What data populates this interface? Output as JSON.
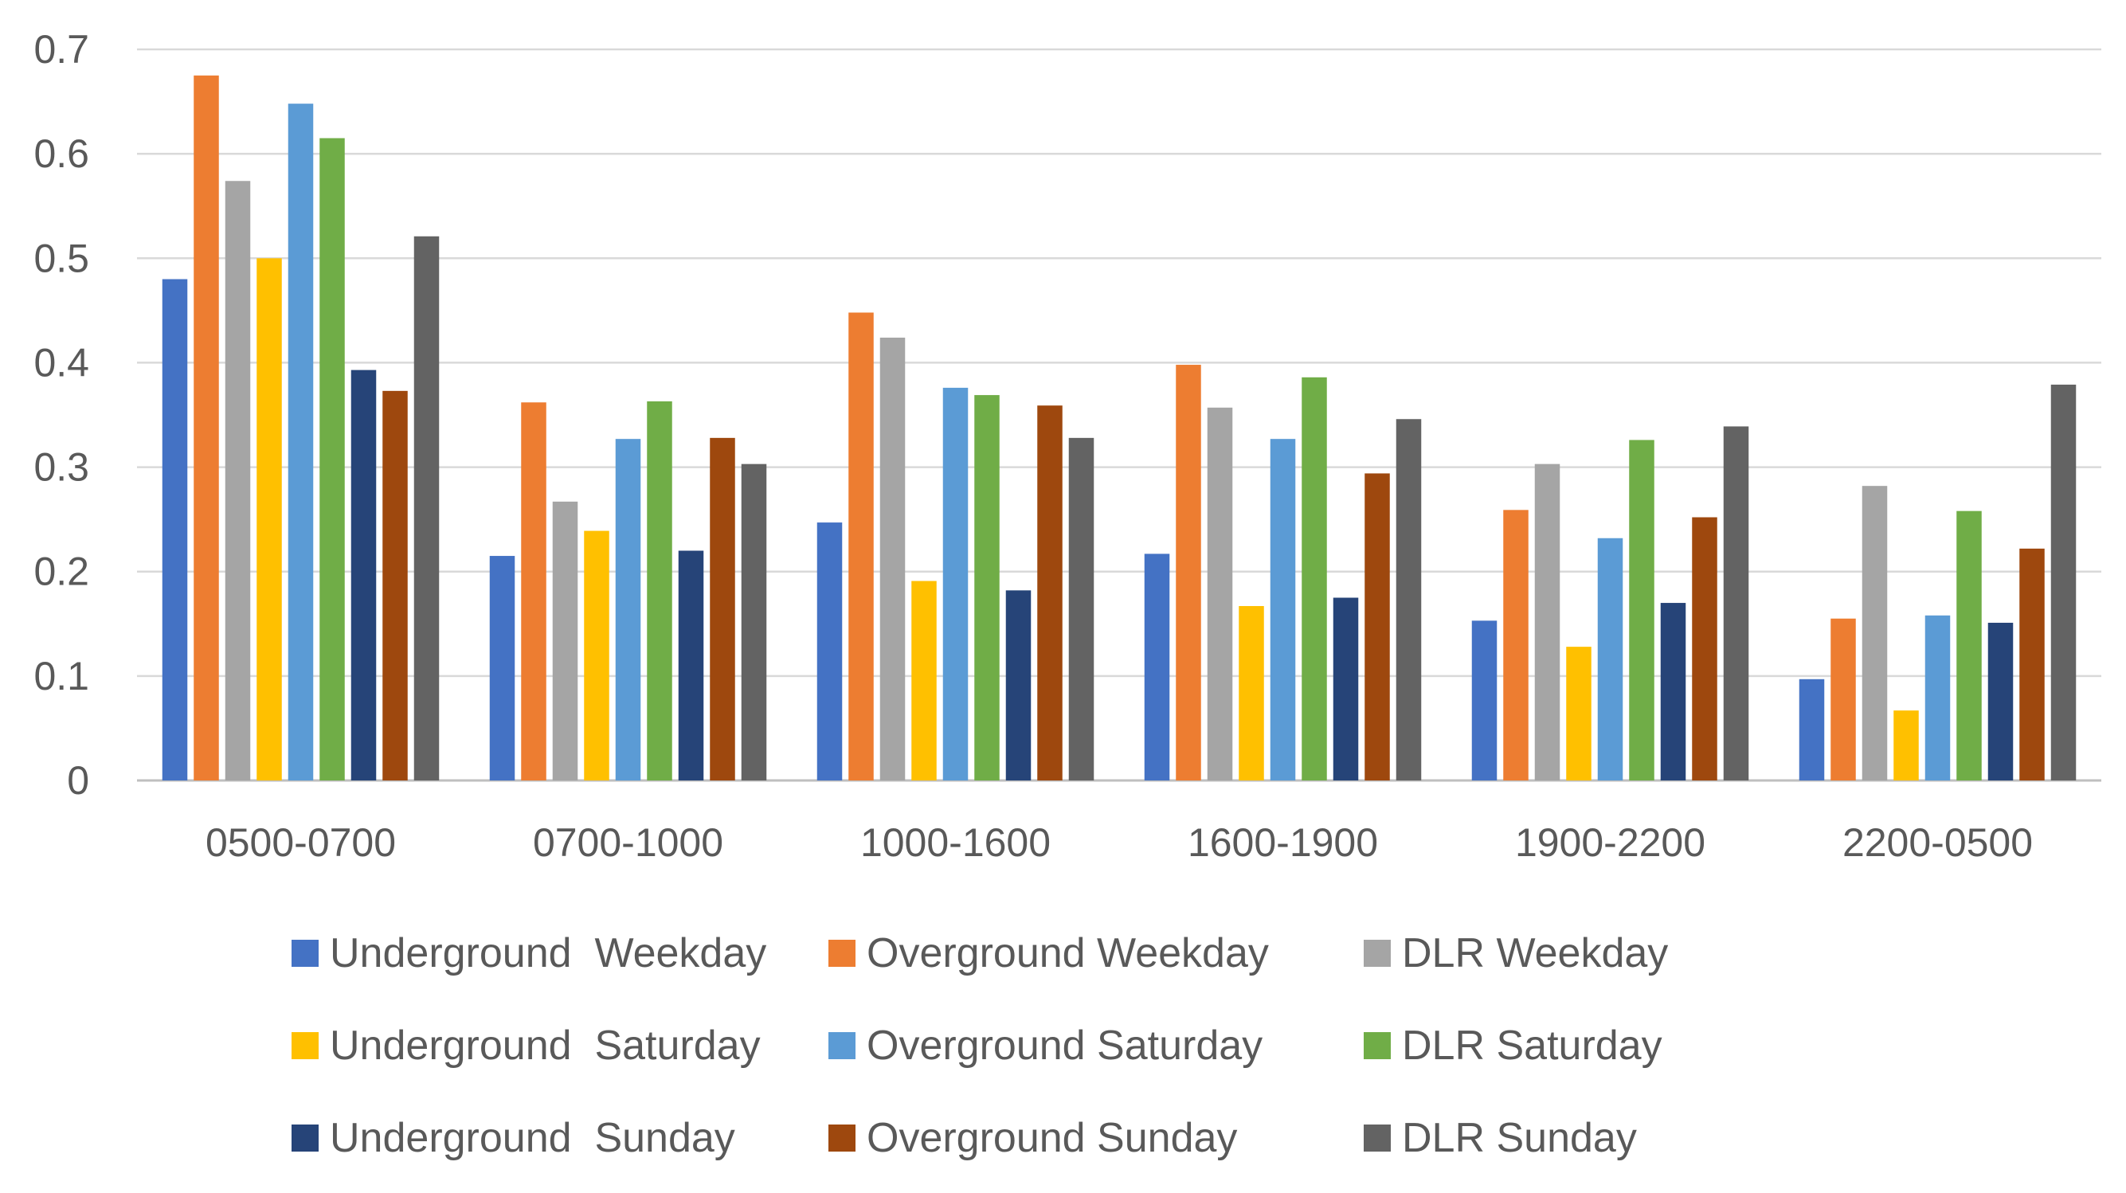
{
  "chart_data": {
    "type": "bar",
    "categories": [
      "0500-0700",
      "0700-1000",
      "1000-1600",
      "1600-1900",
      "1900-2200",
      "2200-0500"
    ],
    "y_ticks": [
      "0",
      "0.1",
      "0.2",
      "0.3",
      "0.4",
      "0.5",
      "0.6",
      "0.7"
    ],
    "ylim": [
      0,
      0.7
    ],
    "grid": true,
    "legend_position": "bottom",
    "series": [
      {
        "name": "Underground  Weekday",
        "color": "#4472C4",
        "values": [
          0.48,
          0.215,
          0.247,
          0.217,
          0.153,
          0.097
        ]
      },
      {
        "name": "Overground Weekday",
        "color": "#ED7D31",
        "values": [
          0.675,
          0.362,
          0.448,
          0.398,
          0.259,
          0.155
        ]
      },
      {
        "name": "DLR Weekday",
        "color": "#A5A5A5",
        "values": [
          0.574,
          0.267,
          0.424,
          0.357,
          0.303,
          0.282
        ]
      },
      {
        "name": "Underground  Saturday",
        "color": "#FFC000",
        "values": [
          0.5,
          0.239,
          0.191,
          0.167,
          0.128,
          0.067
        ]
      },
      {
        "name": "Overground Saturday",
        "color": "#5B9BD5",
        "values": [
          0.648,
          0.327,
          0.376,
          0.327,
          0.232,
          0.158
        ]
      },
      {
        "name": "DLR Saturday",
        "color": "#70AD47",
        "values": [
          0.615,
          0.363,
          0.369,
          0.386,
          0.326,
          0.258
        ]
      },
      {
        "name": "Underground  Sunday",
        "color": "#264478",
        "values": [
          0.393,
          0.22,
          0.182,
          0.175,
          0.17,
          0.151
        ]
      },
      {
        "name": "Overground Sunday",
        "color": "#9E480E",
        "values": [
          0.373,
          0.328,
          0.359,
          0.294,
          0.252,
          0.222
        ]
      },
      {
        "name": "DLR Sunday",
        "color": "#636363",
        "values": [
          0.521,
          0.303,
          0.328,
          0.346,
          0.339,
          0.379
        ]
      }
    ]
  }
}
